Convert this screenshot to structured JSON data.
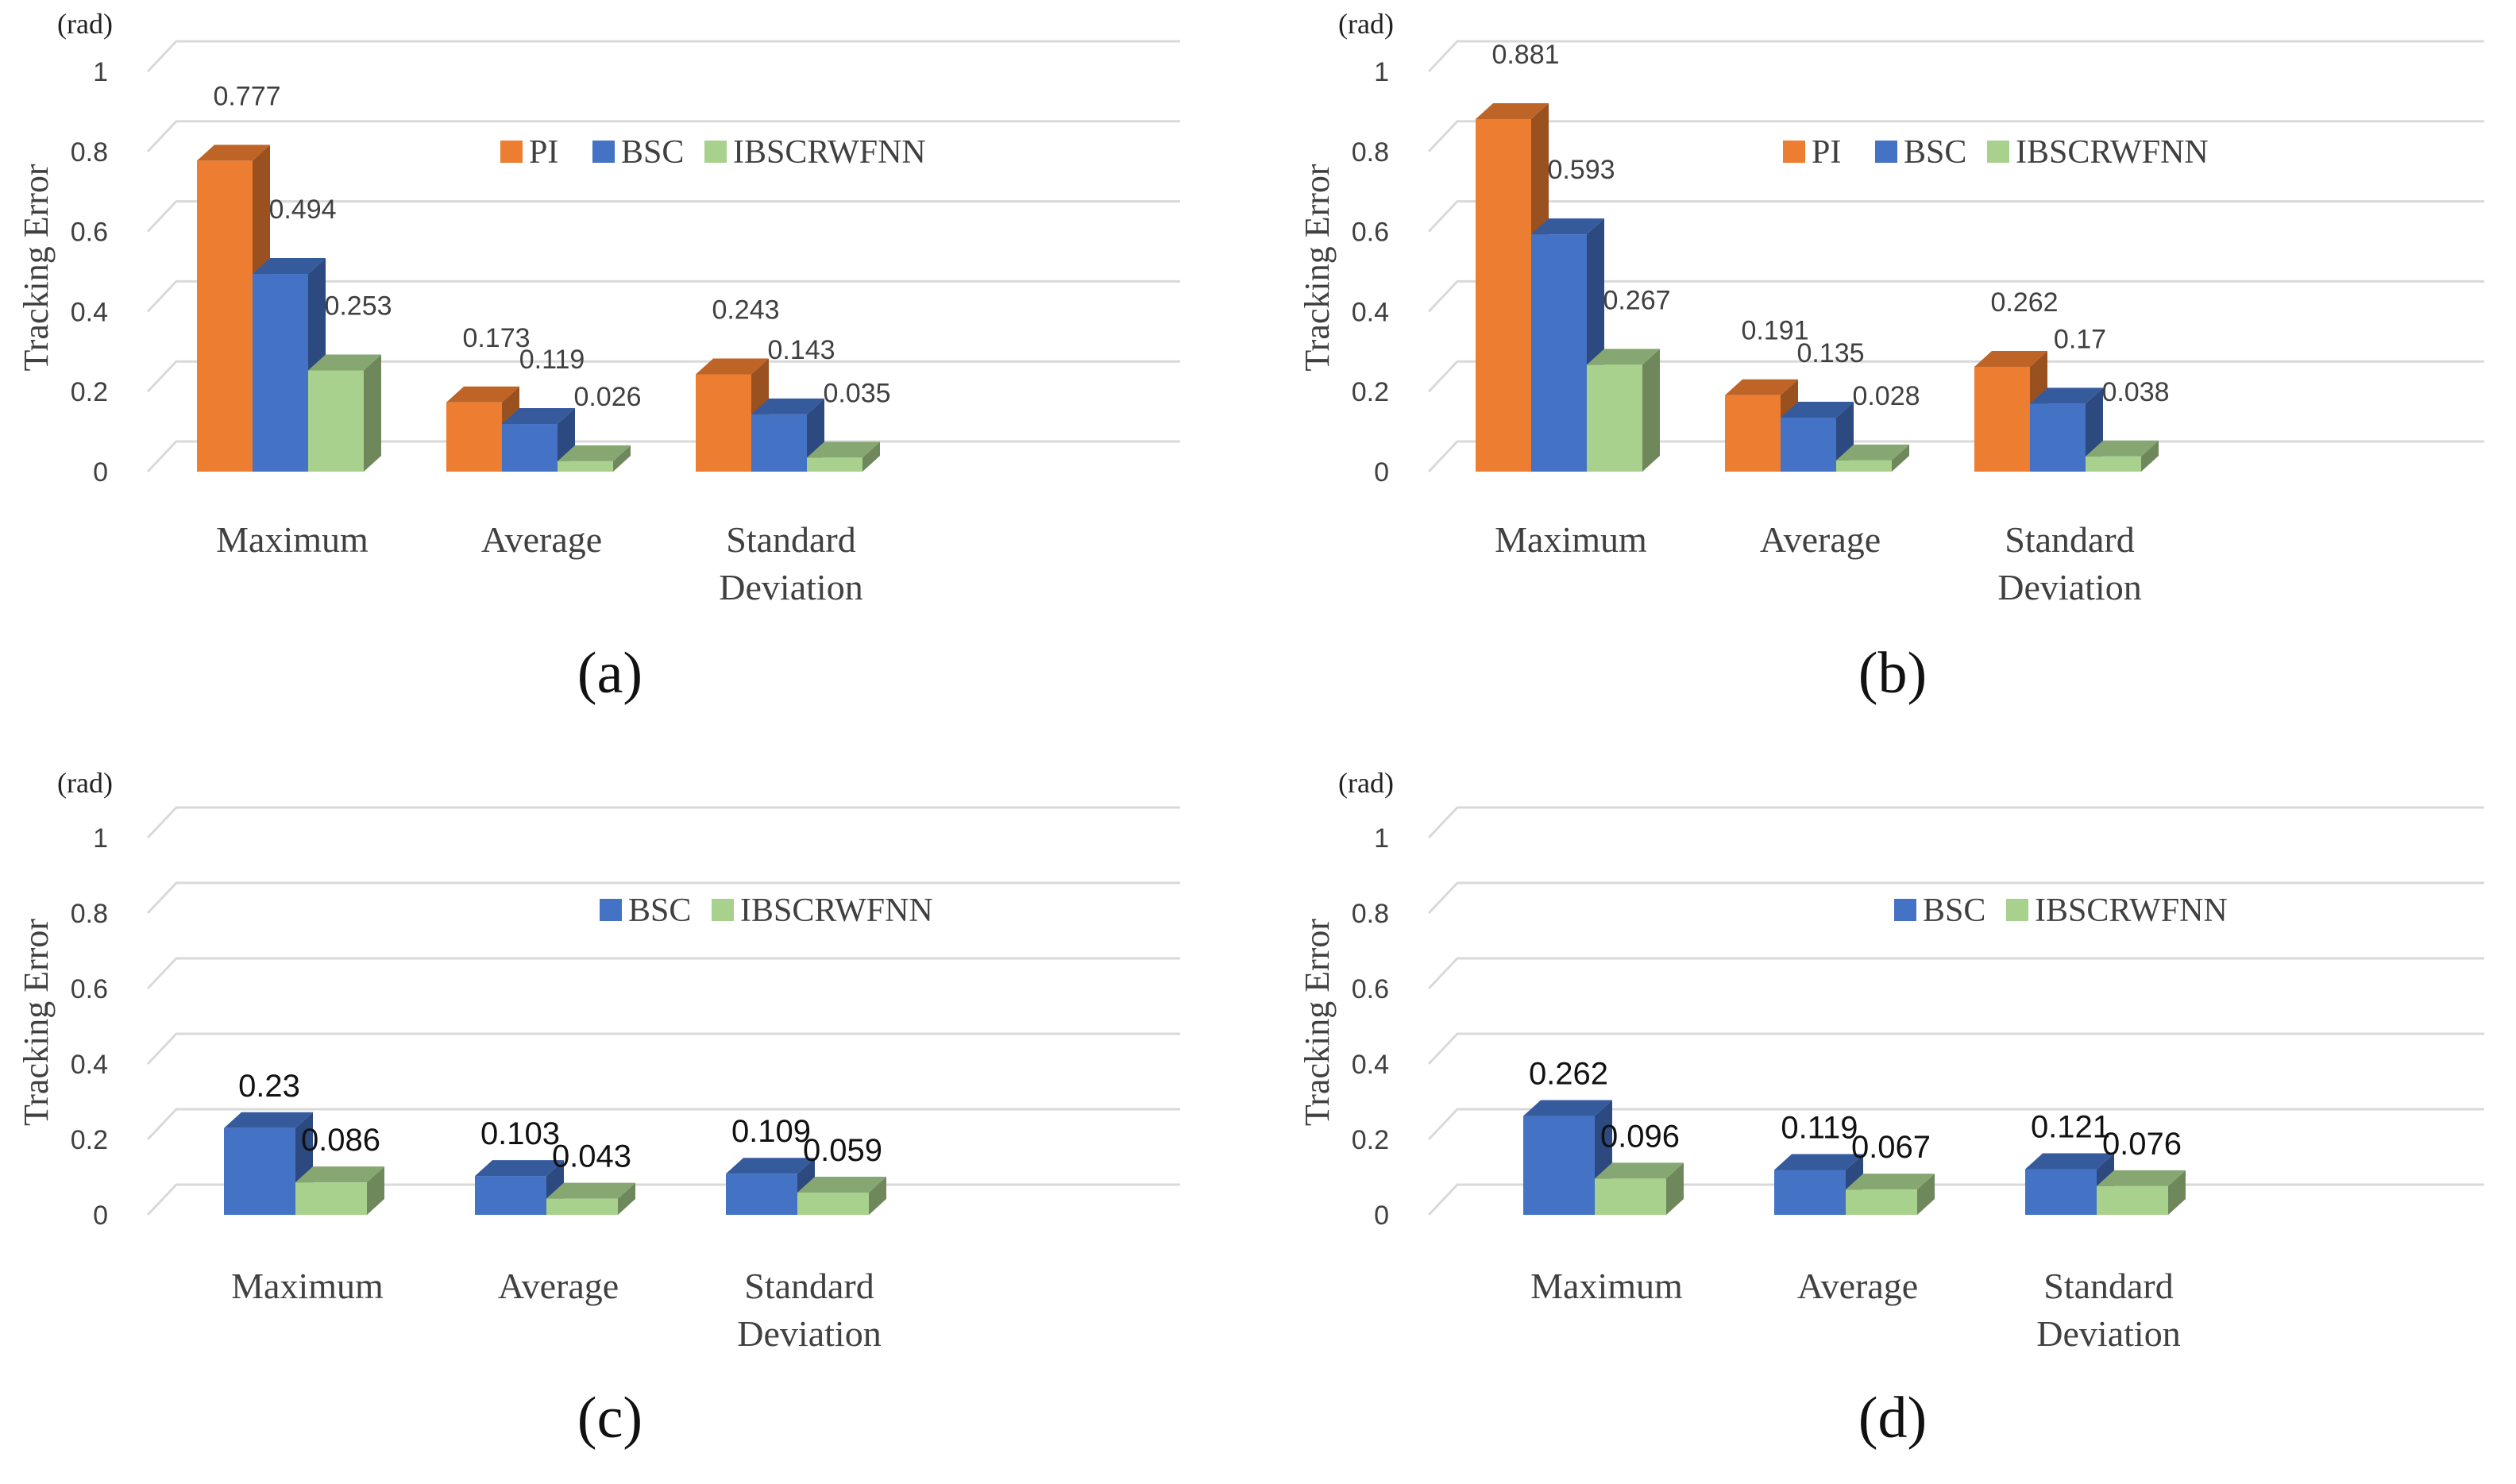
{
  "colors": {
    "PI": "#ED7D31",
    "BSC": "#4472C4",
    "IBSCRWFNN": "#A9D18E",
    "grid": "#D9D9D9",
    "text": "#404040",
    "label": "#222222"
  },
  "chart_data": [
    {
      "panel": "(a)",
      "type": "bar",
      "unit": "(rad)",
      "ylabel": "Tracking Error",
      "ylim": [
        0,
        1
      ],
      "yticks": [
        "0",
        "0.2",
        "0.4",
        "0.6",
        "0.8",
        "1"
      ],
      "categories": [
        "Maximum",
        "Average",
        "Standard Deviation"
      ],
      "series": [
        {
          "name": "PI",
          "values": [
            0.777,
            0.173,
            0.243
          ],
          "labels": [
            "0.777",
            "0.173",
            "0.243"
          ]
        },
        {
          "name": "BSC",
          "values": [
            0.494,
            0.119,
            0.143
          ],
          "labels": [
            "0.494",
            "0.119",
            "0.143"
          ]
        },
        {
          "name": "IBSCRWFNN",
          "values": [
            0.253,
            0.026,
            0.035
          ],
          "labels": [
            "0.253",
            "0.026",
            "0.035"
          ]
        }
      ],
      "legend": "top-center"
    },
    {
      "panel": "(b)",
      "type": "bar",
      "unit": "(rad)",
      "ylabel": "Tracking Error",
      "ylim": [
        0,
        1
      ],
      "yticks": [
        "0",
        "0.2",
        "0.4",
        "0.6",
        "0.8",
        "1"
      ],
      "categories": [
        "Maximum",
        "Average",
        "Standard Deviation"
      ],
      "series": [
        {
          "name": "PI",
          "values": [
            0.881,
            0.191,
            0.262
          ],
          "labels": [
            "0.881",
            "0.191",
            "0.262"
          ]
        },
        {
          "name": "BSC",
          "values": [
            0.593,
            0.135,
            0.17
          ],
          "labels": [
            "0.593",
            "0.135",
            "0.17"
          ]
        },
        {
          "name": "IBSCRWFNN",
          "values": [
            0.267,
            0.028,
            0.038
          ],
          "labels": [
            "0.267",
            "0.028",
            "0.038"
          ]
        }
      ],
      "legend": "top-center"
    },
    {
      "panel": "(c)",
      "type": "bar",
      "unit": "(rad)",
      "ylabel": "Tracking Error",
      "ylim": [
        0,
        1
      ],
      "yticks": [
        "0",
        "0.2",
        "0.4",
        "0.6",
        "0.8",
        "1"
      ],
      "categories": [
        "Maximum",
        "Average",
        "Standard Deviation"
      ],
      "series": [
        {
          "name": "BSC",
          "values": [
            0.23,
            0.103,
            0.109
          ],
          "labels": [
            "0.23",
            "0.103",
            "0.109"
          ]
        },
        {
          "name": "IBSCRWFNN",
          "values": [
            0.086,
            0.043,
            0.059
          ],
          "labels": [
            "0.086",
            "0.043",
            "0.059"
          ]
        }
      ],
      "legend": "top-center"
    },
    {
      "panel": "(d)",
      "type": "bar",
      "unit": "(rad)",
      "ylabel": "Tracking Error",
      "ylim": [
        0,
        1
      ],
      "yticks": [
        "0",
        "0.2",
        "0.4",
        "0.6",
        "0.8",
        "1"
      ],
      "categories": [
        "Maximum",
        "Average",
        "Standard Deviation"
      ],
      "series": [
        {
          "name": "BSC",
          "values": [
            0.262,
            0.119,
            0.121
          ],
          "labels": [
            "0.262",
            "0.119",
            "0.121"
          ]
        },
        {
          "name": "IBSCRWFNN",
          "values": [
            0.096,
            0.067,
            0.076
          ],
          "labels": [
            "0.096",
            "0.067",
            "0.076"
          ]
        }
      ],
      "legend": "top-center"
    }
  ]
}
